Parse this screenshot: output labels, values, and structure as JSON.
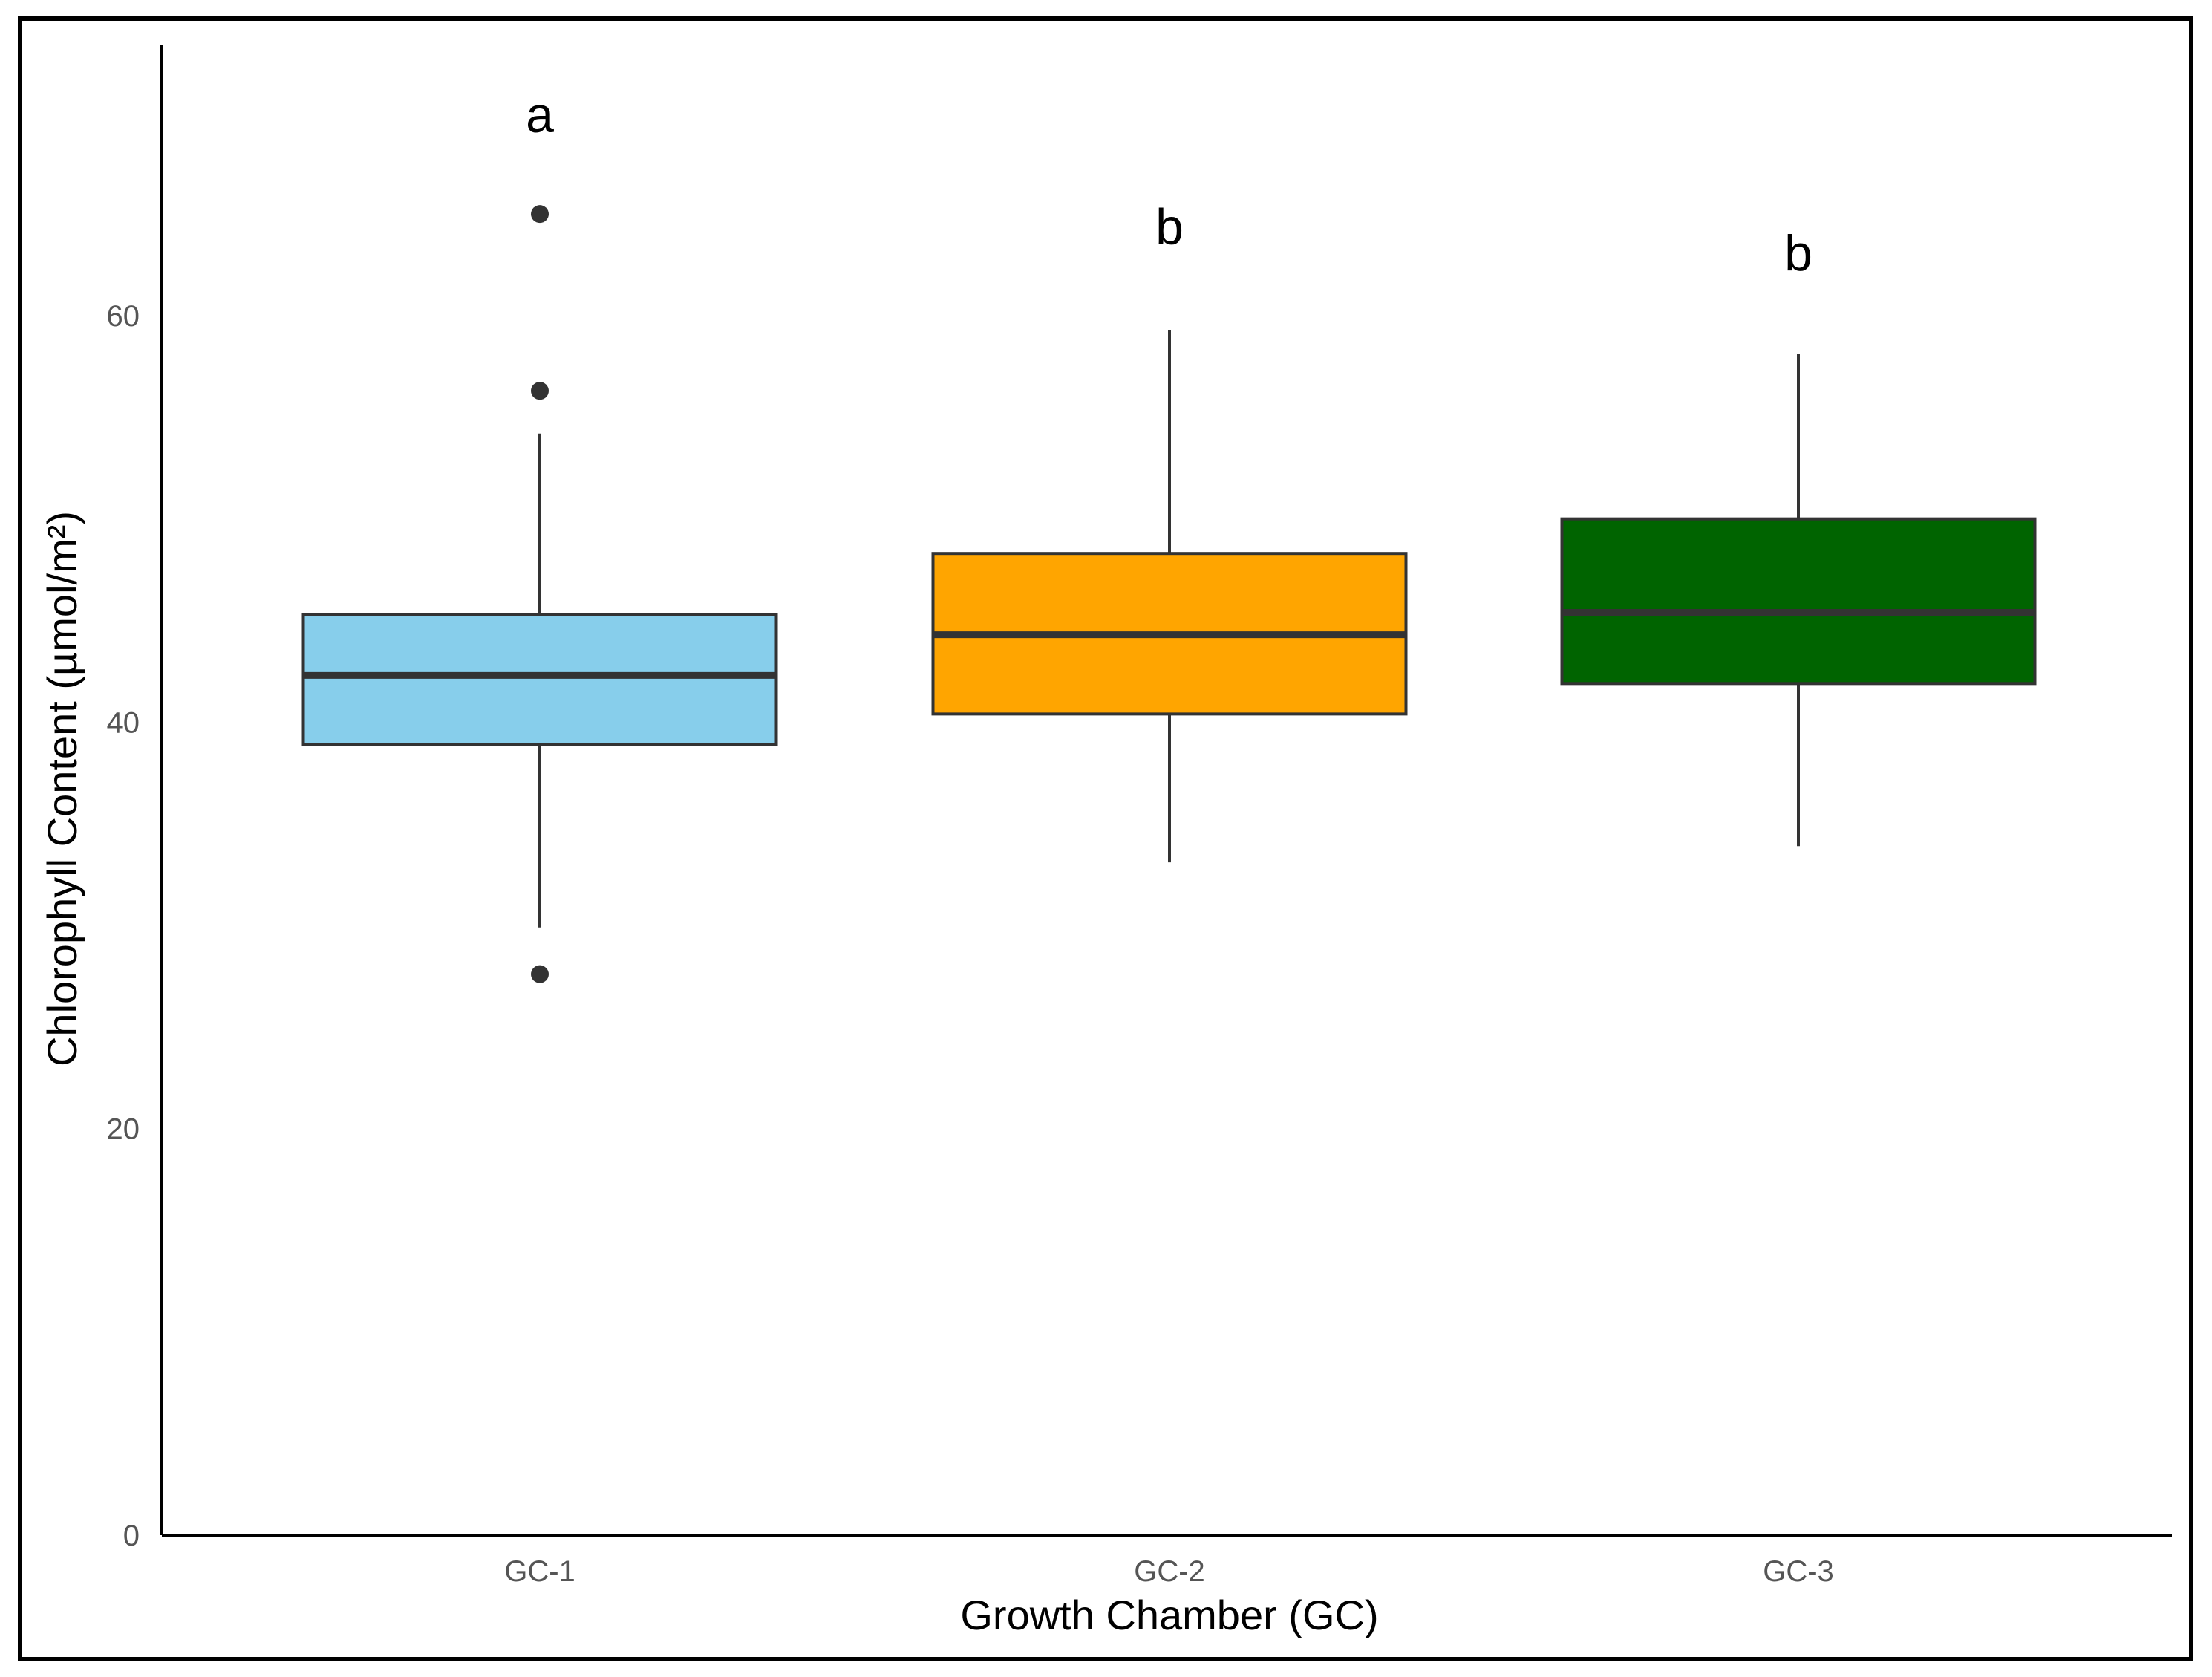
{
  "chart_data": {
    "type": "boxplot",
    "title": "",
    "xlabel": "Growth Chamber (GC)",
    "ylabel": "Chlorophyll Content (µmol/m²)",
    "ylim": [
      0,
      70
    ],
    "yticks": [
      0,
      20,
      40,
      60
    ],
    "grid": false,
    "legend": "none",
    "categories": [
      "GC-1",
      "GC-2",
      "GC-3"
    ],
    "boxes": [
      {
        "category": "GC-1",
        "color": "#87CEEB",
        "whisker_low": 29.9,
        "q1": 38.9,
        "median": 42.3,
        "q3": 45.3,
        "whisker_high": 54.2,
        "outliers": [
          65.0,
          56.3,
          27.6
        ],
        "significance": "a"
      },
      {
        "category": "GC-2",
        "color": "#FFA500",
        "whisker_low": 33.1,
        "q1": 40.4,
        "median": 44.3,
        "q3": 48.3,
        "whisker_high": 59.3,
        "outliers": [],
        "significance": "b"
      },
      {
        "category": "GC-3",
        "color": "#006400",
        "whisker_low": 33.9,
        "q1": 41.9,
        "median": 45.4,
        "q3": 50.0,
        "whisker_high": 58.1,
        "outliers": [],
        "significance": "b"
      }
    ],
    "significance_y": [
      69.9,
      64.4,
      63.1
    ]
  }
}
